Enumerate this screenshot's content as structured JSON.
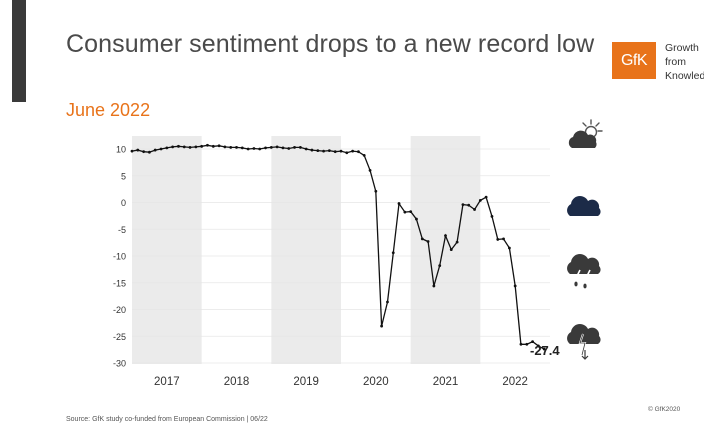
{
  "slide": {
    "title": "Consumer sentiment drops to a new record low",
    "subtitle": "June 2022",
    "source": "Source: GfK study co-funded from European Commission | 06/22",
    "copyright": "© GfK2020"
  },
  "logo": {
    "mark": "GfK",
    "tagline_line1": "Growth",
    "tagline_line2": "from",
    "tagline_line3": "Knowled"
  },
  "colors": {
    "accent": "#e8731a",
    "line": "#111111",
    "band": "#ebebeb",
    "cloud_dark": "#3a3a3a",
    "cloud_navy": "#1c2b48"
  },
  "chart_data": {
    "type": "line",
    "title": "",
    "xlabel": "",
    "ylabel": "",
    "ylim": [
      -30,
      10
    ],
    "yticks": [
      10,
      5,
      0,
      -5,
      -10,
      -15,
      -20,
      -25,
      -30
    ],
    "xlim": [
      2016.5,
      2022.5
    ],
    "year_labels": [
      "2017",
      "2018",
      "2019",
      "2020",
      "2021",
      "2022"
    ],
    "shaded_years": [
      "2017",
      "2019",
      "2021"
    ],
    "grid": true,
    "latest_label": "-27.4",
    "series": [
      {
        "name": "",
        "x": [
          2016.5,
          2016.583,
          2016.667,
          2016.75,
          2016.833,
          2016.917,
          2017.0,
          2017.083,
          2017.167,
          2017.25,
          2017.333,
          2017.417,
          2017.5,
          2017.583,
          2017.667,
          2017.75,
          2017.833,
          2017.917,
          2018.0,
          2018.083,
          2018.167,
          2018.25,
          2018.333,
          2018.417,
          2018.5,
          2018.583,
          2018.667,
          2018.75,
          2018.833,
          2018.917,
          2019.0,
          2019.083,
          2019.167,
          2019.25,
          2019.333,
          2019.417,
          2019.5,
          2019.583,
          2019.667,
          2019.75,
          2019.833,
          2019.917,
          2020.0,
          2020.083,
          2020.167,
          2020.25,
          2020.333,
          2020.417,
          2020.5,
          2020.583,
          2020.667,
          2020.75,
          2020.833,
          2020.917,
          2021.0,
          2021.083,
          2021.167,
          2021.25,
          2021.333,
          2021.417,
          2021.5,
          2021.583,
          2021.667,
          2021.75,
          2021.833,
          2021.917,
          2022.0,
          2022.083,
          2022.167,
          2022.25,
          2022.333,
          2022.417
        ],
        "values": [
          9.6,
          9.8,
          9.5,
          9.4,
          9.8,
          10.0,
          10.2,
          10.4,
          10.5,
          10.4,
          10.3,
          10.4,
          10.5,
          10.7,
          10.5,
          10.6,
          10.4,
          10.3,
          10.3,
          10.2,
          10.0,
          10.1,
          10.0,
          10.2,
          10.3,
          10.4,
          10.2,
          10.1,
          10.3,
          10.3,
          10.0,
          9.8,
          9.7,
          9.6,
          9.7,
          9.5,
          9.6,
          9.3,
          9.6,
          9.5,
          8.8,
          6.0,
          2.1,
          -23.1,
          -18.6,
          -9.4,
          -0.2,
          -1.8,
          -1.7,
          -3.1,
          -6.8,
          -7.3,
          -15.6,
          -11.8,
          -6.2,
          -8.8,
          -7.4,
          -0.4,
          -0.5,
          -1.3,
          0.4,
          1.0,
          -2.6,
          -6.9,
          -6.8,
          -8.5,
          -15.6,
          -26.5,
          -26.5,
          -26.0,
          -26.8,
          -27.4
        ]
      }
    ]
  },
  "scale_icons": [
    {
      "icon": "sun-cloud-icon",
      "level": "10"
    },
    {
      "icon": "cloud-icon",
      "level": "0"
    },
    {
      "icon": "rain-cloud-icon",
      "level": "-12"
    },
    {
      "icon": "thunder-cloud-icon",
      "level": "-27.4"
    }
  ]
}
